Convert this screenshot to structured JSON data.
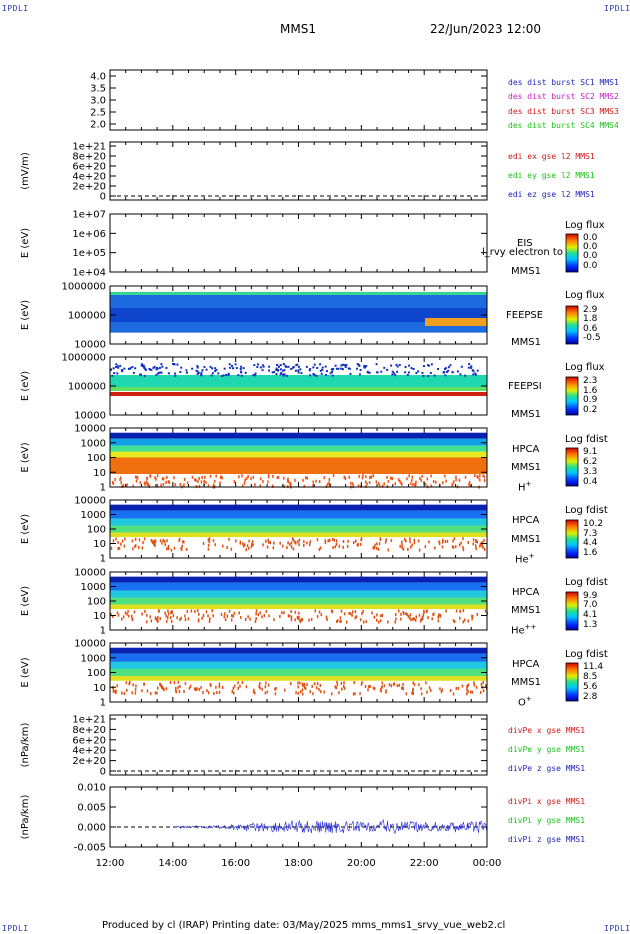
{
  "corners": {
    "tl": "IPDLI",
    "tr": "IPDLI",
    "bl": "IPDLI",
    "br": "IPDLI"
  },
  "header": {
    "spacecraft": "MMS1",
    "datetime": "22/Jun/2023 12:00"
  },
  "footer": {
    "text": "Produced by cl (IRAP)   Printing date: 03/May/2025   mms_mms1_srvy_vue_web2.cl"
  },
  "colors": {
    "c1": "#1f24b8",
    "c2": "#c21fc2",
    "c3": "#d21818",
    "c4": "#18c418",
    "ex": "#d21818",
    "ey": "#18c418",
    "ez": "#1f24b8"
  },
  "chart_data": {
    "type": "heatmap",
    "x_ticks": [
      "12:00",
      "14:00",
      "16:00",
      "18:00",
      "20:00",
      "22:00",
      "00:00"
    ],
    "panels": [
      {
        "id": "p1",
        "ylabel": "",
        "yticks": [
          "4.0",
          "3.5",
          "3.0",
          "2.5",
          "2.0"
        ],
        "legend": [
          "des dist burst SC1 MMS1",
          "des dist burst SC2 MMS2",
          "des dist burst SC3 MMS3",
          "des dist burst SC4 MMS4"
        ]
      },
      {
        "id": "p2",
        "ylabel": "(mV/m)",
        "yticks": [
          "1e+21",
          "8e+20",
          "6e+20",
          "4e+20",
          "2e+20",
          "0"
        ],
        "legend": [
          "edi ex gse l2 MMS1",
          "edi ey gse l2 MMS1",
          "edi ez gse l2 MMS1"
        ]
      },
      {
        "id": "p3",
        "ylabel": "E (eV)",
        "yticks": [
          "1e+07",
          "1e+06",
          "1e+05",
          "1e+04"
        ],
        "inst": [
          "EIS",
          "MMS1"
        ],
        "extra": "l_rvy electron to",
        "cbtitle": "Log flux",
        "cbticks": [
          "0.0",
          "0.0",
          "0.0",
          "0.0"
        ]
      },
      {
        "id": "p4",
        "ylabel": "E (eV)",
        "yticks": [
          "1000000",
          "100000",
          "10000"
        ],
        "inst": [
          "FEEPSE",
          "MMS1"
        ],
        "cbtitle": "Log flux",
        "cbticks": [
          "2.9",
          "1.8",
          "0.6",
          "-0.5"
        ]
      },
      {
        "id": "p5",
        "ylabel": "E (eV)",
        "yticks": [
          "1000000",
          "100000",
          "10000"
        ],
        "inst": [
          "FEEPSI",
          "MMS1"
        ],
        "cbtitle": "Log flux",
        "cbticks": [
          "2.3",
          "1.6",
          "0.9",
          "0.2"
        ]
      },
      {
        "id": "p6",
        "ylabel": "E (eV)",
        "yticks": [
          "10000",
          "1000",
          "100",
          "10",
          "1"
        ],
        "inst": [
          "HPCA",
          "MMS1"
        ],
        "species": "H",
        "sup": "+",
        "cbtitle": "Log fdist",
        "cbticks": [
          "9.1",
          "6.2",
          "3.3",
          "0.4"
        ]
      },
      {
        "id": "p7",
        "ylabel": "E (eV)",
        "yticks": [
          "10000",
          "1000",
          "100",
          "10",
          "1"
        ],
        "inst": [
          "HPCA",
          "MMS1"
        ],
        "species": "He",
        "sup": "+",
        "cbtitle": "Log fdist",
        "cbticks": [
          "10.2",
          "7.3",
          "4.4",
          "1.6"
        ]
      },
      {
        "id": "p8",
        "ylabel": "E (eV)",
        "yticks": [
          "10000",
          "1000",
          "100",
          "10",
          "1"
        ],
        "inst": [
          "HPCA",
          "MMS1"
        ],
        "species": "He",
        "sup": "++",
        "cbtitle": "Log fdist",
        "cbticks": [
          "9.9",
          "7.0",
          "4.1",
          "1.3"
        ]
      },
      {
        "id": "p9",
        "ylabel": "E (eV)",
        "yticks": [
          "10000",
          "1000",
          "100",
          "10",
          "1"
        ],
        "inst": [
          "HPCA",
          "MMS1"
        ],
        "species": "O",
        "sup": "+",
        "cbtitle": "Log fdist",
        "cbticks": [
          "11.4",
          "8.5",
          "5.6",
          "2.8"
        ]
      },
      {
        "id": "p10",
        "ylabel": "(nPa/km)",
        "yticks": [
          "1e+21",
          "8e+20",
          "6e+20",
          "4e+20",
          "2e+20",
          "0"
        ],
        "legend": [
          "divPe x gse MMS1",
          "divPe y gse MMS1",
          "divPe z gse MMS1"
        ]
      },
      {
        "id": "p11",
        "ylabel": "(nPa/km)",
        "yticks": [
          "0.010",
          "0.005",
          "0.000",
          "-0.005"
        ],
        "legend": [
          "divPi x gse MMS1",
          "divPi y gse MMS1",
          "divPi z gse MMS1"
        ]
      }
    ]
  }
}
